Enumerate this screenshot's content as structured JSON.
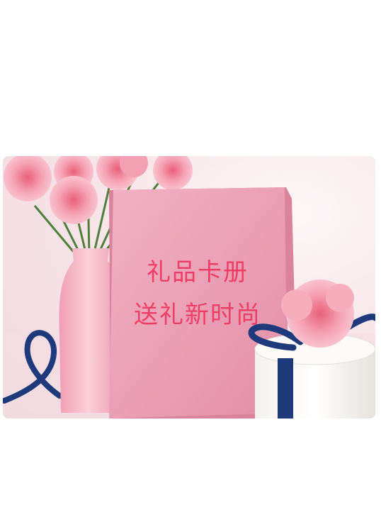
{
  "banner": {
    "card_line_1": "礼品卡册",
    "card_line_2": "送礼新时尚"
  },
  "colors": {
    "card_pink": "#e99fb5",
    "text_pink": "#ee3d66",
    "ribbon_blue": "#1f3a7a",
    "vase_pink": "#f6b9c6"
  }
}
